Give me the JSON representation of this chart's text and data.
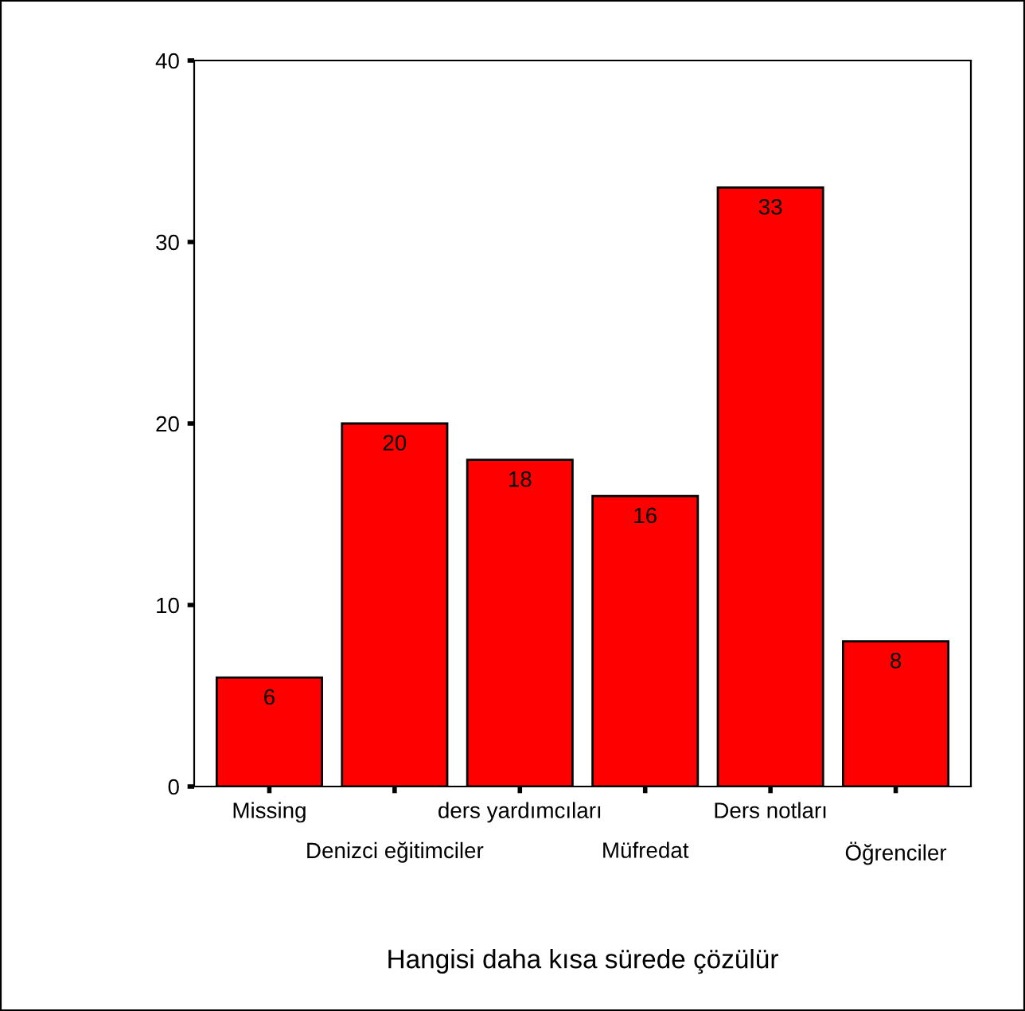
{
  "chart_data": {
    "type": "bar",
    "xlabel": "Hangisi daha kısa sürede çözülür",
    "categories": [
      "Missing",
      "Denizci eğitimciler",
      "ders yardımcıları",
      "Müfredat",
      "Ders notları",
      "Öğrenciler"
    ],
    "values": [
      6,
      20,
      18,
      16,
      33,
      8
    ],
    "color": "#ff0000",
    "data_labels": true,
    "ylim": [
      0,
      40
    ],
    "yticks": [
      0,
      10,
      20,
      30,
      40
    ],
    "grid": false,
    "legend": false
  }
}
